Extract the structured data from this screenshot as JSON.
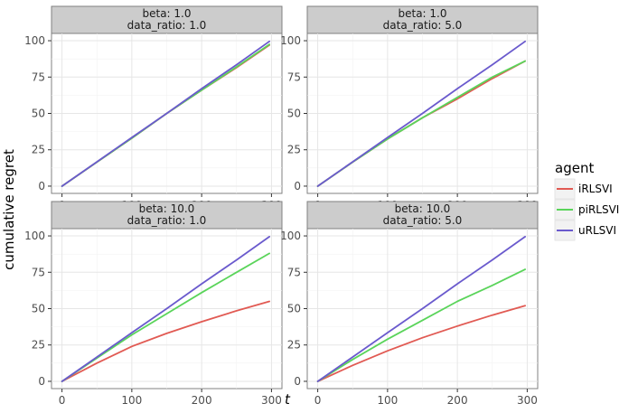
{
  "chart_data": {
    "type": "line",
    "xlabel": "t",
    "ylabel": "cumulative regret",
    "xlim": [
      -15,
      315
    ],
    "ylim": [
      -5,
      105
    ],
    "xticks": [
      0,
      100,
      200,
      300
    ],
    "yticks": [
      0,
      25,
      50,
      75,
      100
    ],
    "grid": true,
    "legend": {
      "title": "agent",
      "position": "right",
      "entries": [
        {
          "name": "iRLSVI",
          "color": "#e15a53"
        },
        {
          "name": "piRLSVI",
          "color": "#5ad45a"
        },
        {
          "name": "uRLSVI",
          "color": "#6a5acd"
        }
      ]
    },
    "panels": [
      {
        "strip_lines": [
          "beta: 1.0",
          "data_ratio: 1.0"
        ],
        "series": [
          {
            "name": "iRLSVI",
            "x": [
              0,
              50,
              100,
              150,
              200,
              250,
              297
            ],
            "y": [
              0,
              16.5,
              33,
              50,
              66,
              81.5,
              97
            ]
          },
          {
            "name": "piRLSVI",
            "x": [
              0,
              50,
              100,
              150,
              200,
              250,
              297
            ],
            "y": [
              0,
              16.5,
              33,
              50,
              66,
              82,
              97.5
            ]
          },
          {
            "name": "uRLSVI",
            "x": [
              0,
              50,
              100,
              150,
              200,
              250,
              297
            ],
            "y": [
              0,
              16.7,
              33.5,
              50,
              67,
              83.5,
              99.5
            ]
          }
        ]
      },
      {
        "strip_lines": [
          "beta: 1.0",
          "data_ratio: 5.0"
        ],
        "series": [
          {
            "name": "iRLSVI",
            "x": [
              0,
              50,
              100,
              150,
              200,
              250,
              297
            ],
            "y": [
              0,
              16.5,
              32.5,
              47,
              60,
              74,
              86
            ]
          },
          {
            "name": "piRLSVI",
            "x": [
              0,
              50,
              100,
              150,
              200,
              250,
              297
            ],
            "y": [
              0,
              16.5,
              32.5,
              47,
              61,
              75,
              86
            ]
          },
          {
            "name": "uRLSVI",
            "x": [
              0,
              50,
              100,
              150,
              200,
              250,
              297
            ],
            "y": [
              0,
              16.7,
              33.5,
              50,
              67,
              83.5,
              99.5
            ]
          }
        ]
      },
      {
        "strip_lines": [
          "beta: 10.0",
          "data_ratio: 1.0"
        ],
        "series": [
          {
            "name": "iRLSVI",
            "x": [
              0,
              50,
              100,
              150,
              200,
              250,
              297
            ],
            "y": [
              0,
              12.5,
              24,
              33,
              41,
              48.5,
              55
            ]
          },
          {
            "name": "piRLSVI",
            "x": [
              0,
              50,
              100,
              150,
              200,
              250,
              297
            ],
            "y": [
              0,
              16,
              32,
              46.5,
              61,
              75,
              88
            ]
          },
          {
            "name": "uRLSVI",
            "x": [
              0,
              50,
              100,
              150,
              200,
              250,
              297
            ],
            "y": [
              0,
              16.7,
              33.5,
              50,
              67,
              83.5,
              99.5
            ]
          }
        ]
      },
      {
        "strip_lines": [
          "beta: 10.0",
          "data_ratio: 5.0"
        ],
        "series": [
          {
            "name": "iRLSVI",
            "x": [
              0,
              50,
              100,
              150,
              200,
              250,
              297
            ],
            "y": [
              0,
              11,
              21,
              30,
              38,
              45.5,
              52
            ]
          },
          {
            "name": "piRLSVI",
            "x": [
              0,
              50,
              100,
              150,
              200,
              250,
              297
            ],
            "y": [
              0,
              15,
              29,
              42,
              55,
              66,
              77
            ]
          },
          {
            "name": "uRLSVI",
            "x": [
              0,
              50,
              100,
              150,
              200,
              250,
              297
            ],
            "y": [
              0,
              16.7,
              33.5,
              50,
              67,
              83.5,
              99.5
            ]
          }
        ]
      }
    ]
  }
}
